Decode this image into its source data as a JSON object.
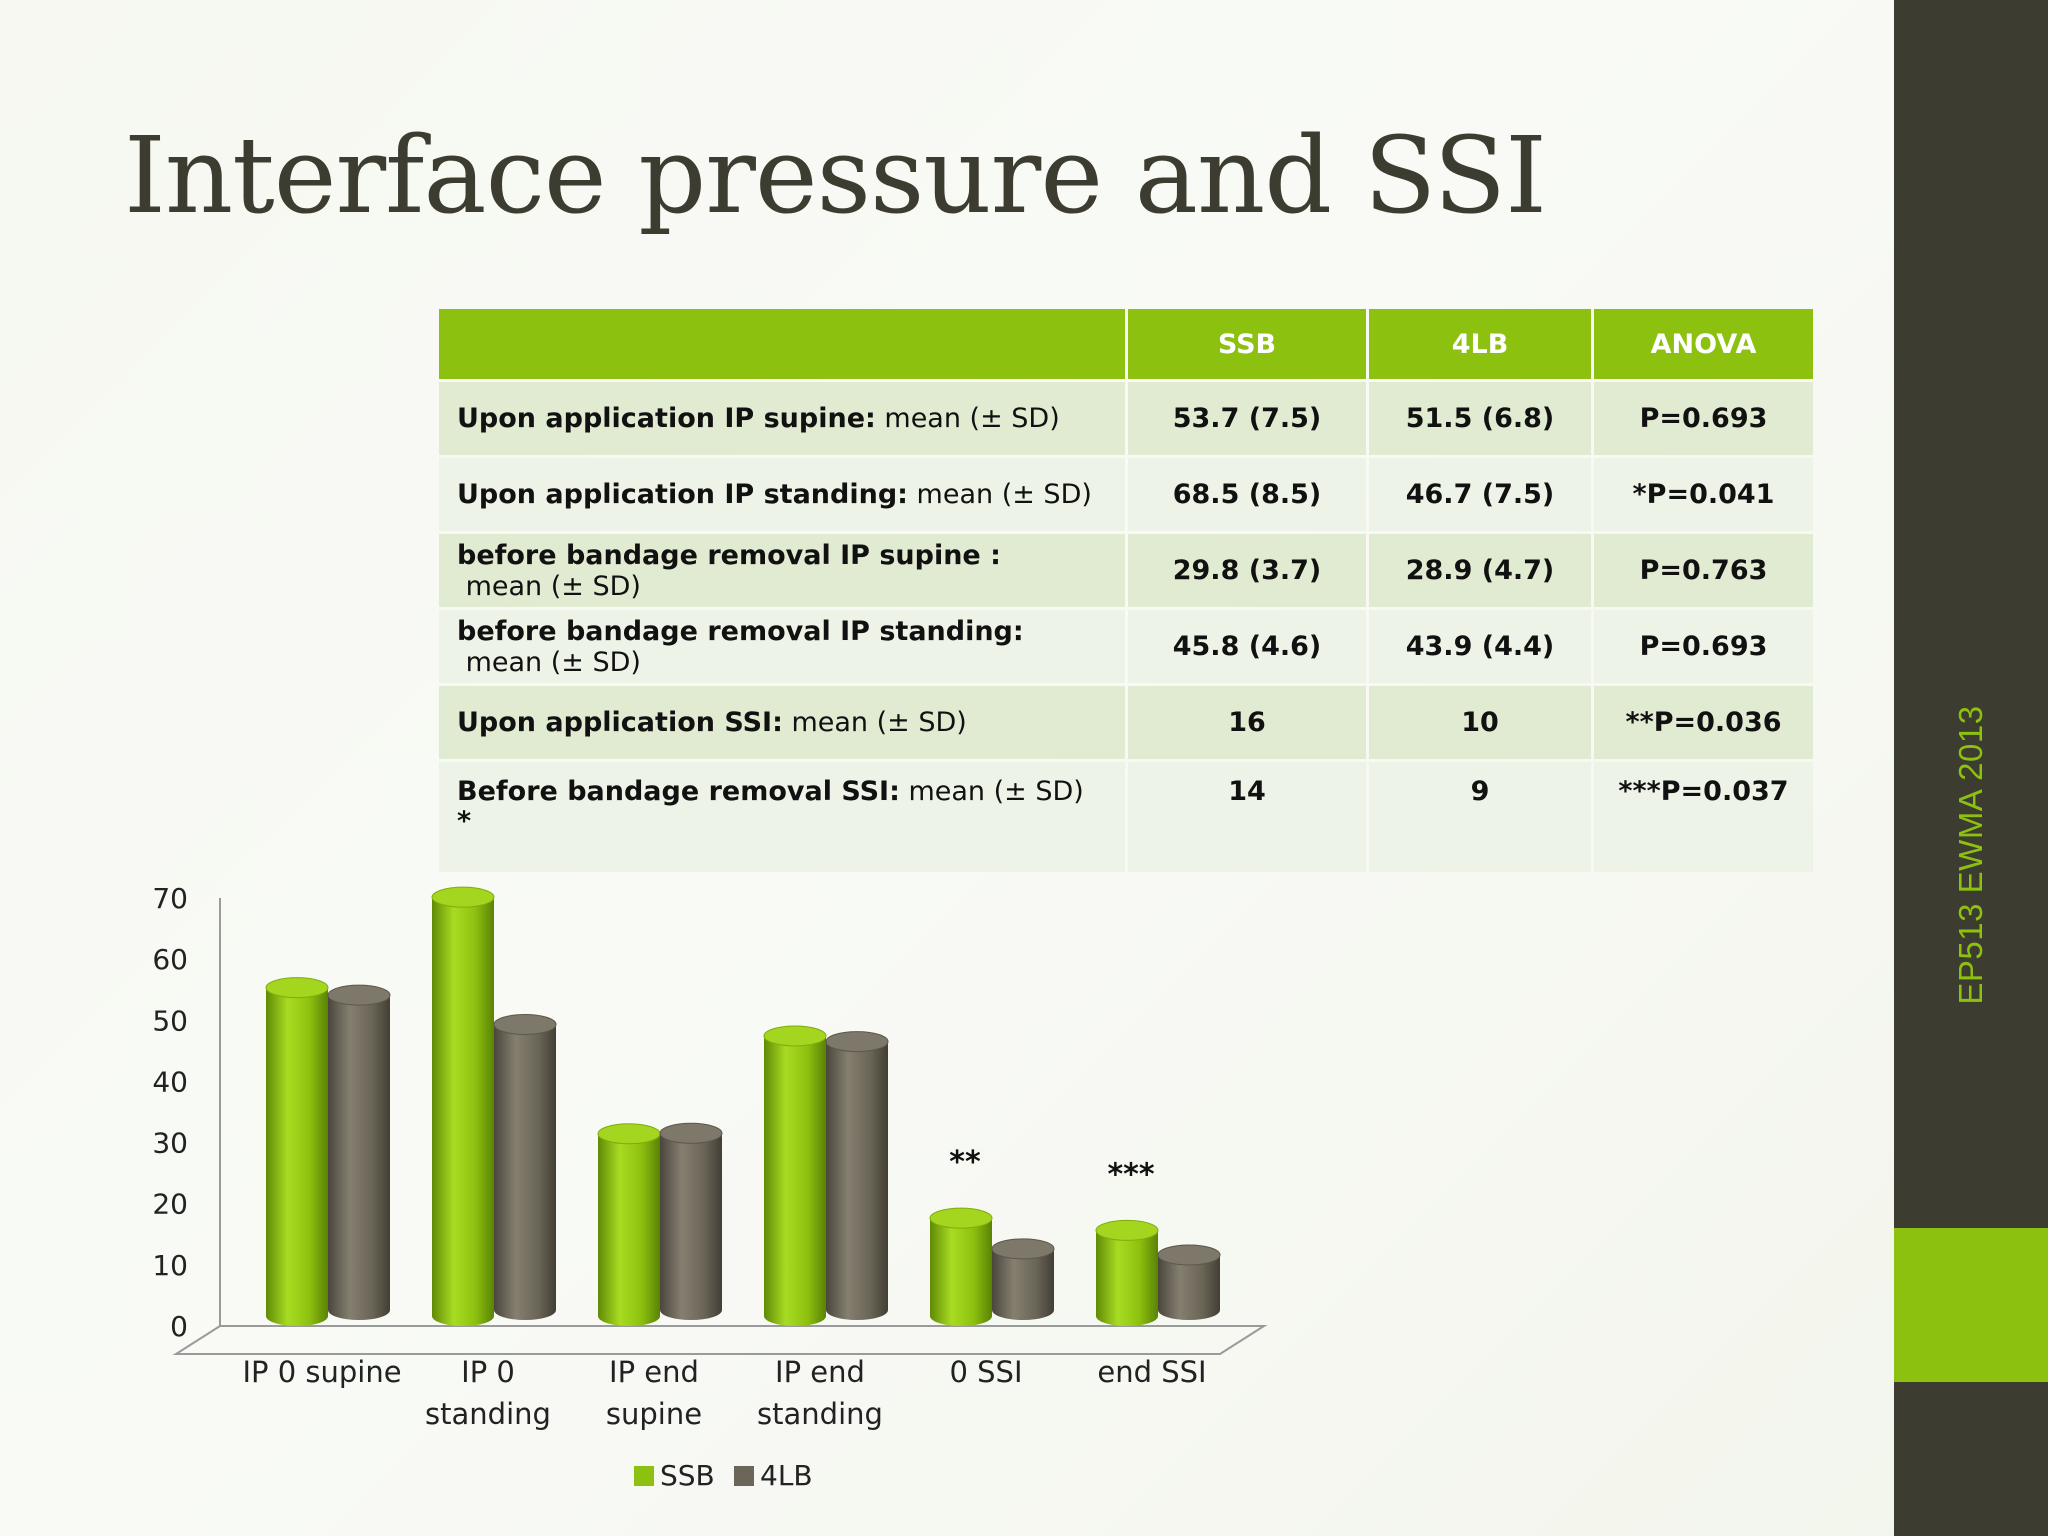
{
  "slide": {
    "title": "Interface pressure and SSI",
    "sidebar_text": "EP513 EWMA 2013",
    "colors": {
      "accent": "#8dc10f",
      "dark": "#3d3c30",
      "ssb": "#8dc10f",
      "4lb": "#6b6658"
    }
  },
  "table": {
    "headers": [
      "",
      "SSB",
      "4LB",
      "ANOVA"
    ],
    "rows": [
      {
        "label_bold": "Upon application IP supine:",
        "label_rest": " mean (± SD)",
        "ssb": "53.7 (7.5)",
        "lb4": "51.5 (6.8)",
        "anova": "P=0.693",
        "note": ""
      },
      {
        "label_bold": "Upon application IP standing:",
        "label_rest": " mean (± SD)",
        "ssb": "68.5 (8.5)",
        "lb4": "46.7 (7.5)",
        "anova": "*P=0.041",
        "note": ""
      },
      {
        "label_bold": "before bandage removal IP supine :",
        "label_rest": " mean (± SD)",
        "ssb": "29.8 (3.7)",
        "lb4": "28.9 (4.7)",
        "anova": "P=0.763",
        "note": ""
      },
      {
        "label_bold": "before bandage removal IP standing:",
        "label_rest": " mean (± SD)",
        "ssb": "45.8 (4.6)",
        "lb4": "43.9 (4.4)",
        "anova": "P=0.693",
        "note": ""
      },
      {
        "label_bold": "Upon application SSI:",
        "label_rest": " mean (± SD)",
        "ssb": "16",
        "lb4": "10",
        "anova": "**P=0.036",
        "note": ""
      },
      {
        "label_bold": "Before bandage removal SSI:",
        "label_rest": " mean (± SD)",
        "ssb": "14",
        "lb4": "9",
        "anova": "***P=0.037",
        "note": "*"
      }
    ]
  },
  "chart_data": {
    "type": "bar",
    "categories": [
      "IP 0 supine",
      "IP 0 standing",
      "IP end supine",
      "IP end standing",
      "0 SSI",
      "end SSI"
    ],
    "category_lines": [
      [
        "IP 0 supine"
      ],
      [
        "IP 0",
        "standing"
      ],
      [
        "IP end",
        "supine"
      ],
      [
        "IP end",
        "standing"
      ],
      [
        "0 SSI"
      ],
      [
        "end SSI"
      ]
    ],
    "series": [
      {
        "name": "SSB",
        "values": [
          53.7,
          68.5,
          29.8,
          45.8,
          16,
          14
        ],
        "color": "#8dc10f"
      },
      {
        "name": "4LB",
        "values": [
          51.5,
          46.7,
          28.9,
          43.9,
          10,
          9
        ],
        "color": "#6b6658"
      }
    ],
    "ylim": [
      0,
      70
    ],
    "yticks": [
      0,
      10,
      20,
      30,
      40,
      50,
      60,
      70
    ],
    "annotations": [
      {
        "category": "0 SSI",
        "text": "**"
      },
      {
        "category": "end SSI",
        "text": "***"
      }
    ],
    "legend": "bottom",
    "style": "3d-cylinder",
    "grid": false
  }
}
